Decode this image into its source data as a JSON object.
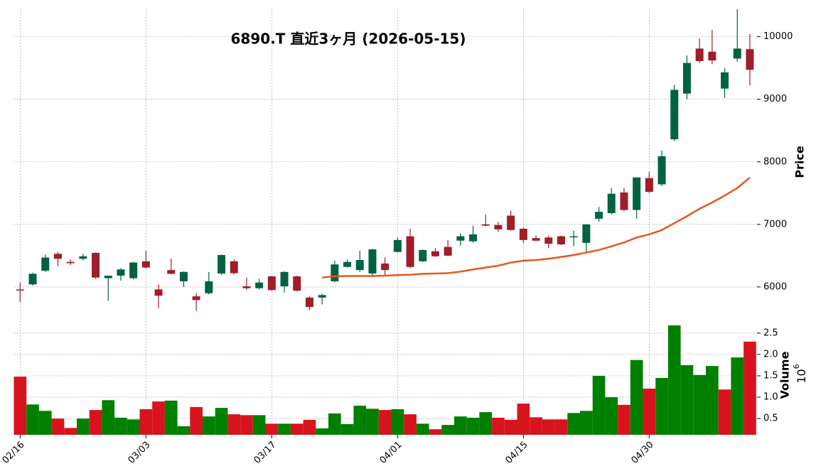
{
  "chart_data": {
    "type": "candlestick",
    "title": "6890.T  直近3ヶ月  (2026-05-15)",
    "y_label": "Price",
    "categories": [
      "02/16",
      null,
      null,
      null,
      null,
      null,
      null,
      null,
      null,
      null,
      "03/03",
      null,
      null,
      null,
      null,
      null,
      null,
      null,
      null,
      null,
      "03/17",
      null,
      null,
      null,
      null,
      null,
      null,
      null,
      null,
      null,
      "04/01",
      null,
      null,
      null,
      null,
      null,
      null,
      null,
      null,
      null,
      "04/15",
      null,
      null,
      null,
      null,
      null,
      null,
      null,
      null,
      null,
      "04/30",
      null,
      null,
      null,
      null,
      null,
      null,
      null,
      null
    ],
    "open": [
      5960,
      6040,
      6260,
      6530,
      6400,
      6450,
      6545,
      6140,
      6180,
      6140,
      6410,
      5960,
      6270,
      6090,
      5850,
      5900,
      6215,
      6410,
      6010,
      5980,
      6170,
      6010,
      6170,
      5830,
      5830,
      6090,
      6320,
      6270,
      6215,
      6375,
      6560,
      6810,
      6410,
      6570,
      6640,
      6740,
      6730,
      7000,
      6990,
      7140,
      6930,
      6780,
      6790,
      6810,
      6800,
      6705,
      7090,
      7180,
      7510,
      7230,
      7740,
      7640,
      8360,
      9090,
      9810,
      9760,
      9170,
      9650,
      9800
    ],
    "high": [
      6070,
      6230,
      6520,
      6560,
      6440,
      6530,
      6550,
      6180,
      6300,
      6400,
      6580,
      6040,
      6450,
      6250,
      5900,
      6240,
      6520,
      6440,
      6150,
      6130,
      6180,
      6250,
      6180,
      5850,
      5890,
      6420,
      6440,
      6580,
      6610,
      6470,
      6790,
      6930,
      6600,
      6620,
      6750,
      6860,
      6980,
      7160,
      7040,
      7220,
      6950,
      6820,
      6820,
      6820,
      6900,
      7000,
      7280,
      7580,
      7580,
      7750,
      7840,
      8180,
      9230,
      9700,
      9970,
      10110,
      9500,
      10440,
      10040
    ],
    "low": [
      5760,
      6020,
      6240,
      6330,
      6350,
      6420,
      6130,
      5780,
      6100,
      6120,
      6300,
      5660,
      6200,
      6000,
      5620,
      5880,
      6190,
      6200,
      5950,
      5960,
      5940,
      5910,
      5930,
      5630,
      5720,
      6080,
      6310,
      6240,
      6160,
      6190,
      6550,
      6300,
      6400,
      6480,
      6490,
      6660,
      6710,
      6970,
      6880,
      6900,
      6700,
      6730,
      6620,
      6670,
      6650,
      6550,
      7040,
      7160,
      7210,
      7090,
      7500,
      7610,
      8330,
      9000,
      9580,
      9560,
      9020,
      9600,
      9220
    ],
    "close": [
      5950,
      6210,
      6470,
      6450,
      6380,
      6490,
      6150,
      6180,
      6280,
      6390,
      6310,
      5860,
      6210,
      6240,
      5790,
      6090,
      6510,
      6220,
      5980,
      6070,
      5950,
      6240,
      5940,
      5680,
      5870,
      6360,
      6400,
      6430,
      6600,
      6270,
      6750,
      6320,
      6590,
      6490,
      6500,
      6810,
      6840,
      6980,
      6920,
      6910,
      6750,
      6740,
      6690,
      6680,
      6810,
      7000,
      7200,
      7490,
      7230,
      7750,
      7520,
      8090,
      9150,
      9580,
      9610,
      9620,
      9430,
      9810,
      9470
    ],
    "up_color": "#006340",
    "down_color": "#a01d2a",
    "ma": {
      "color": "#e8561c",
      "values": [
        null,
        null,
        null,
        null,
        null,
        null,
        null,
        null,
        null,
        null,
        null,
        null,
        null,
        null,
        null,
        null,
        null,
        null,
        null,
        null,
        null,
        null,
        null,
        null,
        6150,
        6170,
        6175,
        6175,
        6175,
        6180,
        6190,
        6195,
        6210,
        6215,
        6220,
        6245,
        6280,
        6310,
        6340,
        6390,
        6420,
        6430,
        6450,
        6480,
        6510,
        6550,
        6590,
        6650,
        6710,
        6790,
        6840,
        6910,
        7020,
        7130,
        7250,
        7350,
        7460,
        7580,
        7750
      ]
    },
    "ylim": [
      5590,
      10450
    ],
    "yticks": [
      6000,
      7000,
      8000,
      9000,
      10000
    ],
    "grid": true,
    "volume": {
      "label": "Volume",
      "multiplier": {
        "base": "10",
        "exponent": "6"
      },
      "up_color": "#008000",
      "down_color": "#d7141e",
      "values": [
        1.48,
        0.83,
        0.68,
        0.5,
        0.28,
        0.5,
        0.7,
        0.93,
        0.52,
        0.48,
        0.72,
        0.9,
        0.92,
        0.32,
        0.77,
        0.55,
        0.75,
        0.6,
        0.58,
        0.58,
        0.38,
        0.38,
        0.38,
        0.47,
        0.27,
        0.62,
        0.37,
        0.8,
        0.73,
        0.7,
        0.72,
        0.6,
        0.38,
        0.25,
        0.35,
        0.55,
        0.52,
        0.65,
        0.52,
        0.47,
        0.85,
        0.53,
        0.48,
        0.48,
        0.63,
        0.68,
        1.5,
        1.0,
        0.82,
        1.87,
        1.2,
        1.45,
        2.68,
        1.75,
        1.52,
        1.73,
        1.18,
        1.93,
        2.3
      ],
      "ylim": [
        0.12,
        2.73
      ],
      "yticks": [
        0.5,
        {
          "value": 1,
          "label": "1.0"
        },
        1.5,
        {
          "value": 2,
          "label": "2.0"
        },
        2.5
      ]
    }
  }
}
